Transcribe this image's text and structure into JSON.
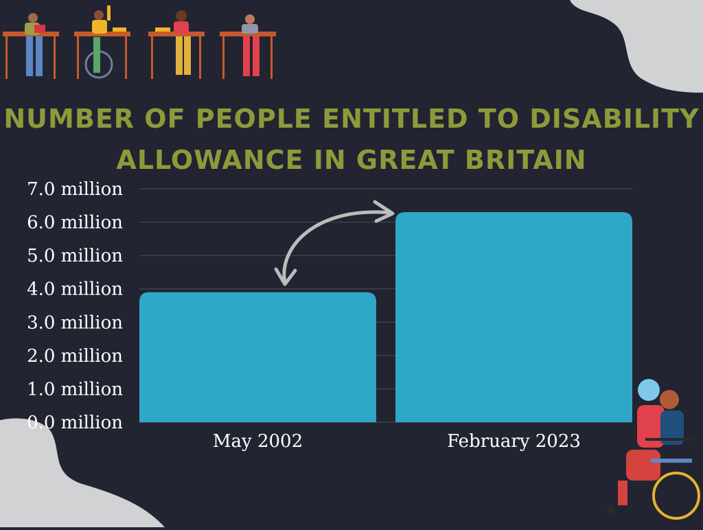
{
  "chart_data": {
    "type": "bar",
    "title_line1": "NUMBER OF PEOPLE ENTITLED TO DISABILITY",
    "title_line2": "ALLOWANCE IN GREAT BRITAIN",
    "categories": [
      "May 2002",
      "February 2023"
    ],
    "values": [
      3.9,
      6.3
    ],
    "ylim": [
      0,
      7
    ],
    "yticks": [
      "0.0 million",
      "1.0 million",
      "2.0 million",
      "3.0 million",
      "4.0 million",
      "5.0 million",
      "6.0 million",
      "7.0 million"
    ],
    "grid": true,
    "bar_color": "#2fa8c8",
    "title_color": "#8e9a3a",
    "background": "#222431",
    "annotation": "curved double-headed arrow linking the two bars"
  }
}
